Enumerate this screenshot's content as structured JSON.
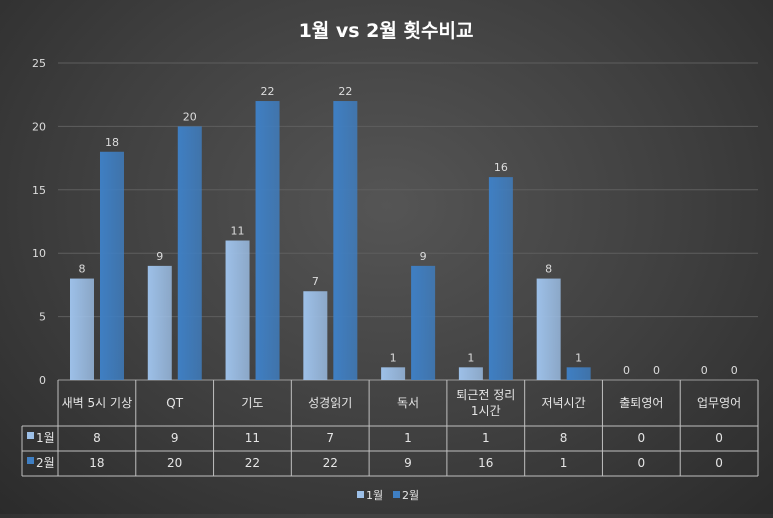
{
  "chart_data": {
    "type": "bar",
    "title": "1월 vs 2월 횟수비교",
    "categories": [
      "새벽 5시 기상",
      "QT",
      "기도",
      "성경읽기",
      "독서",
      "퇴근전 정리 1시간",
      "저녁시간",
      "출퇴영어",
      "업무영어"
    ],
    "series": [
      {
        "name": "1월",
        "values": [
          8,
          9,
          11,
          7,
          1,
          1,
          8,
          0,
          0
        ],
        "color": "#9dc0e8"
      },
      {
        "name": "2월",
        "values": [
          18,
          20,
          22,
          22,
          9,
          16,
          1,
          0,
          0
        ],
        "color": "#3f7fc3"
      }
    ],
    "ylim": [
      0,
      25
    ],
    "yticks": [
      0,
      5,
      10,
      15,
      20,
      25
    ],
    "grid": true,
    "data_table": true,
    "legend_position": "bottom"
  }
}
